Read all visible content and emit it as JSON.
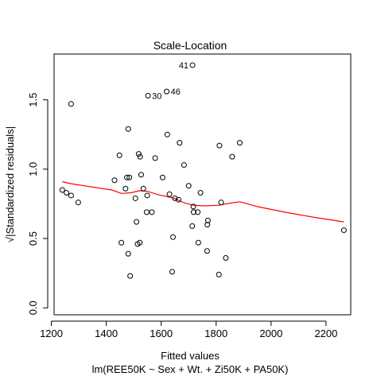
{
  "chart_data": {
    "type": "scatter",
    "title": "Scale-Location",
    "xlabel": "Fitted values",
    "ylabel": "√|Standardized residuals|",
    "sublabel": "lm(REE50K ~ Sex + Wt. + Zi50K + PA50K)",
    "xlim": [
      1210,
      2290
    ],
    "ylim": [
      -0.05,
      1.83
    ],
    "xticks": [
      1200,
      1400,
      1600,
      1800,
      2000,
      2200
    ],
    "xtick_labels": [
      "1200",
      "1400",
      "1600",
      "1800",
      "2000",
      "2200"
    ],
    "yticks": [
      0.0,
      0.5,
      1.0,
      1.5
    ],
    "ytick_labels": [
      "0.0",
      "0.5",
      "1.0",
      "1.5"
    ],
    "grid": false,
    "points": [
      {
        "x": 1240,
        "y": 0.85
      },
      {
        "x": 1255,
        "y": 0.83
      },
      {
        "x": 1272,
        "y": 0.81
      },
      {
        "x": 1298,
        "y": 0.76
      },
      {
        "x": 1272,
        "y": 1.47
      },
      {
        "x": 1430,
        "y": 0.92
      },
      {
        "x": 1448,
        "y": 1.1
      },
      {
        "x": 1455,
        "y": 0.47
      },
      {
        "x": 1470,
        "y": 0.86
      },
      {
        "x": 1475,
        "y": 0.94
      },
      {
        "x": 1484,
        "y": 0.94
      },
      {
        "x": 1480,
        "y": 1.29
      },
      {
        "x": 1480,
        "y": 0.39
      },
      {
        "x": 1487,
        "y": 0.23
      },
      {
        "x": 1506,
        "y": 0.79
      },
      {
        "x": 1510,
        "y": 0.62
      },
      {
        "x": 1514,
        "y": 0.46
      },
      {
        "x": 1522,
        "y": 0.47
      },
      {
        "x": 1518,
        "y": 1.11
      },
      {
        "x": 1523,
        "y": 1.09
      },
      {
        "x": 1527,
        "y": 0.96
      },
      {
        "x": 1535,
        "y": 0.86
      },
      {
        "x": 1547,
        "y": 0.69
      },
      {
        "x": 1549,
        "y": 0.81
      },
      {
        "x": 1552,
        "y": 1.53,
        "label": "30"
      },
      {
        "x": 1566,
        "y": 0.69
      },
      {
        "x": 1578,
        "y": 1.08
      },
      {
        "x": 1605,
        "y": 0.94
      },
      {
        "x": 1620,
        "y": 1.56,
        "label": "46"
      },
      {
        "x": 1622,
        "y": 1.25
      },
      {
        "x": 1630,
        "y": 0.82
      },
      {
        "x": 1640,
        "y": 0.26
      },
      {
        "x": 1643,
        "y": 0.51
      },
      {
        "x": 1650,
        "y": 0.79
      },
      {
        "x": 1663,
        "y": 0.78
      },
      {
        "x": 1667,
        "y": 1.19
      },
      {
        "x": 1683,
        "y": 1.03
      },
      {
        "x": 1700,
        "y": 0.88
      },
      {
        "x": 1714,
        "y": 1.75,
        "label": "41"
      },
      {
        "x": 1713,
        "y": 0.59
      },
      {
        "x": 1718,
        "y": 0.69
      },
      {
        "x": 1717,
        "y": 0.73
      },
      {
        "x": 1733,
        "y": 0.69
      },
      {
        "x": 1743,
        "y": 0.83
      },
      {
        "x": 1735,
        "y": 0.47
      },
      {
        "x": 1768,
        "y": 0.6
      },
      {
        "x": 1770,
        "y": 0.63
      },
      {
        "x": 1767,
        "y": 0.41
      },
      {
        "x": 1810,
        "y": 0.24
      },
      {
        "x": 1812,
        "y": 1.17
      },
      {
        "x": 1818,
        "y": 0.76
      },
      {
        "x": 1835,
        "y": 0.36
      },
      {
        "x": 1858,
        "y": 1.09
      },
      {
        "x": 1886,
        "y": 1.19
      },
      {
        "x": 2265,
        "y": 0.56
      }
    ],
    "smooth_line": {
      "color": "#ff0000",
      "x": [
        1240,
        1272,
        1320,
        1370,
        1420,
        1455,
        1490,
        1520,
        1550,
        1590,
        1640,
        1680,
        1717,
        1760,
        1810,
        1850,
        1886,
        1950,
        2050,
        2150,
        2265
      ],
      "y": [
        0.91,
        0.895,
        0.88,
        0.865,
        0.85,
        0.825,
        0.83,
        0.845,
        0.84,
        0.815,
        0.795,
        0.76,
        0.74,
        0.735,
        0.74,
        0.755,
        0.765,
        0.73,
        0.69,
        0.655,
        0.62
      ]
    }
  }
}
